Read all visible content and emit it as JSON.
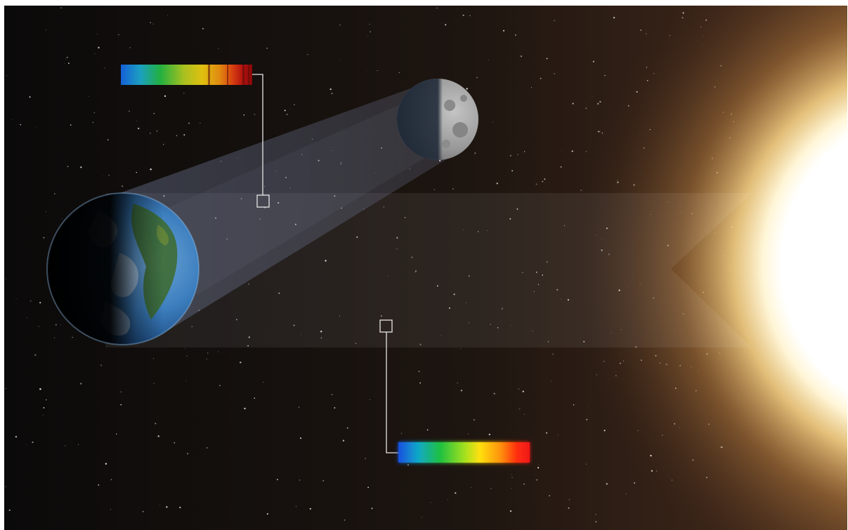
{
  "scene": {
    "colors": {
      "space_dark": "#0b0a0a",
      "space_warm": "#3a2418",
      "sun_core": "#ffffff",
      "sun_glow": "#ffd98a",
      "earth_ocean": "#2c6fb4",
      "earth_land": "#3c6a2a",
      "moon_surface": "#9a9a9a",
      "beam": "#6b7898",
      "callout_line": "#e6e6e6"
    },
    "spectra": [
      {
        "name": "spectrum-reflected-earthshine",
        "stops": [
          "#1560d8",
          "#1ca0c0",
          "#22b040",
          "#a8c020",
          "#e0c010",
          "#e08a10",
          "#d84010",
          "#b01010",
          "#8a0808"
        ],
        "absorption_bands": 4
      },
      {
        "name": "spectrum-sunlight",
        "stops": [
          "#1850e0",
          "#10a8c8",
          "#20c040",
          "#a0e020",
          "#ffe010",
          "#ff9010",
          "#ff3010",
          "#f01818"
        ],
        "absorption_bands": 0
      }
    ]
  }
}
